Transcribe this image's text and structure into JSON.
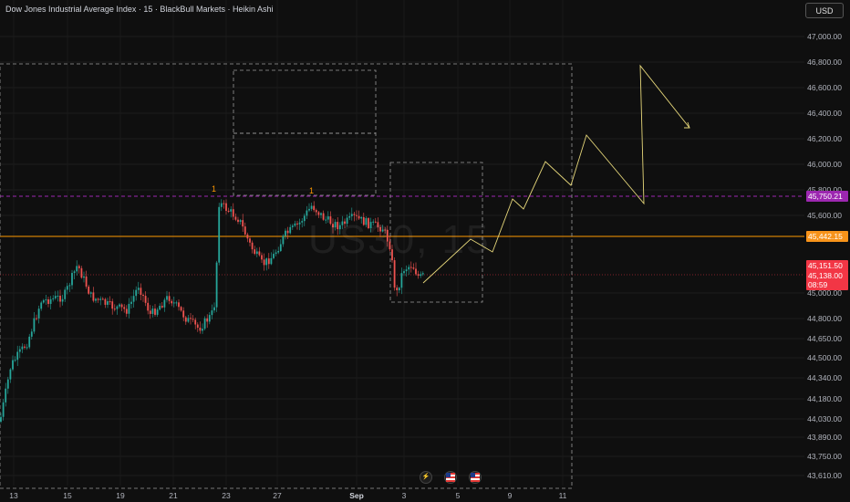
{
  "header": {
    "title": "Dow Jones Industrial Average Index · 15 · BlackBull Markets · Heikin Ashi",
    "currency_button": "USD",
    "watermark": "US30, 15"
  },
  "colors": {
    "background": "#0f0f0f",
    "bull": "#26a69a",
    "bear": "#ef5350",
    "projection": "#e6d77a",
    "resistance_line": "#9c27b0",
    "pivot_line": "#ff9800",
    "price_line": "#f23645"
  },
  "price_axis": {
    "ticks": [
      "47,000.00",
      "46,800.00",
      "46,600.00",
      "46,400.00",
      "46,200.00",
      "46,000.00",
      "45,800.00",
      "45,600.00",
      "45,000.00",
      "44,800.00",
      "44,650.00",
      "44,500.00",
      "44,340.00",
      "44,180.00",
      "44,030.00",
      "43,890.00",
      "43,750.00",
      "43,610.00"
    ]
  },
  "price_labels": {
    "resistance": "45,750.21",
    "pivot": "45,442.15",
    "last_high": "45,151.50",
    "last_close": "45,138.00",
    "countdown": "08:59"
  },
  "time_axis": {
    "ticks": [
      "13",
      "15",
      "19",
      "21",
      "23",
      "27",
      "Sep",
      "3",
      "5",
      "9",
      "11"
    ]
  },
  "markers": [
    "1",
    "1"
  ],
  "events": [
    {
      "icon": "lightning-icon"
    },
    {
      "icon": "us-flag-icon"
    },
    {
      "icon": "us-flag-icon"
    }
  ]
}
